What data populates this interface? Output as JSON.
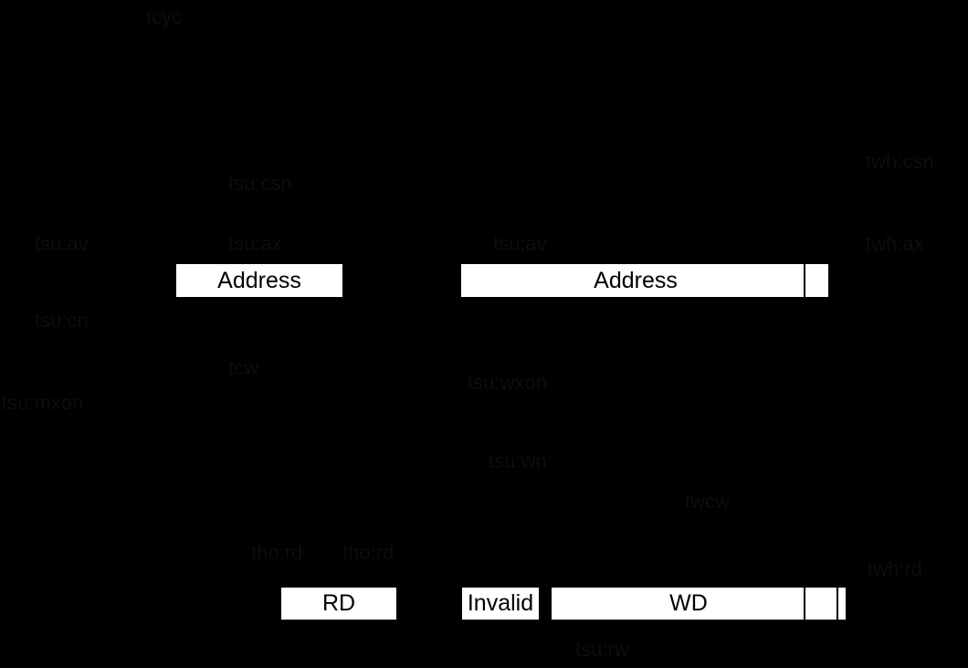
{
  "boxes": {
    "address_1": "Address",
    "address_2": "Address",
    "rd": "RD",
    "invalid": "Invalid",
    "wd": "WD"
  },
  "timing_labels": [
    "tcyc",
    "tsu:csn",
    "tsu:av",
    "tsu:ax",
    "tsu:av",
    "twh:csn",
    "twh:ax",
    "tsu:cn",
    "tcw",
    "tsu:mxon",
    "tsu:wxon",
    "tsu:wn",
    "twcw",
    "tho:rd",
    "tho:rd",
    "twh:rd",
    "tsu:rw"
  ]
}
